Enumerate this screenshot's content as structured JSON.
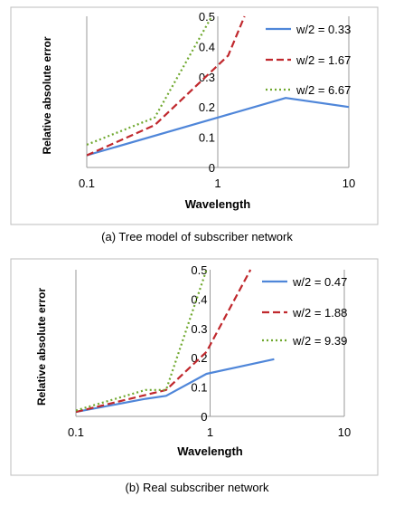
{
  "chart_data": [
    {
      "type": "line",
      "caption": "(a) Tree model of subscriber network",
      "xlabel": "Wavelength",
      "ylabel": "Relative absolute error",
      "xscale": "log",
      "xlim": [
        0.1,
        10
      ],
      "ylim": [
        0,
        0.5
      ],
      "x_ticks": [
        "0.1",
        "1",
        "10"
      ],
      "y_ticks": [
        "0",
        "0.1",
        "0.2",
        "0.3",
        "0.4",
        "0.5"
      ],
      "legend_position": "right",
      "series": [
        {
          "name": "w/2 = 0.33",
          "color": "#4f86d9",
          "dash": "solid",
          "points": [
            [
              0.1,
              0.04
            ],
            [
              3.3,
              0.23
            ],
            [
              10,
              0.2
            ]
          ]
        },
        {
          "name": "w/2 = 1.67",
          "color": "#c0282d",
          "dash": "dashed",
          "points": [
            [
              0.1,
              0.04
            ],
            [
              0.33,
              0.14
            ],
            [
              1.2,
              0.37
            ],
            [
              1.6,
              0.5
            ]
          ]
        },
        {
          "name": "w/2 = 6.67",
          "color": "#6fa82e",
          "dash": "dotted",
          "points": [
            [
              0.1,
              0.075
            ],
            [
              0.33,
              0.165
            ],
            [
              0.9,
              0.5
            ]
          ]
        }
      ]
    },
    {
      "type": "line",
      "caption": "(b) Real subscriber network",
      "xlabel": "Wavelength",
      "ylabel": "Relative absolute error",
      "xscale": "log",
      "xlim": [
        0.1,
        10
      ],
      "ylim": [
        0,
        0.5
      ],
      "x_ticks": [
        "0.1",
        "1",
        "10"
      ],
      "y_ticks": [
        "0",
        "0.1",
        "0.2",
        "0.3",
        "0.4",
        "0.5"
      ],
      "legend_position": "right",
      "series": [
        {
          "name": "w/2 = 0.47",
          "color": "#4f86d9",
          "dash": "solid",
          "points": [
            [
              0.1,
              0.015
            ],
            [
              0.33,
              0.06
            ],
            [
              0.47,
              0.07
            ],
            [
              0.94,
              0.145
            ],
            [
              3.0,
              0.195
            ]
          ]
        },
        {
          "name": "w/2 = 1.88",
          "color": "#c0282d",
          "dash": "dashed",
          "points": [
            [
              0.1,
              0.015
            ],
            [
              0.47,
              0.09
            ],
            [
              0.94,
              0.22
            ],
            [
              2.0,
              0.5
            ]
          ]
        },
        {
          "name": "w/2 = 9.39",
          "color": "#6fa82e",
          "dash": "dotted",
          "points": [
            [
              0.1,
              0.02
            ],
            [
              0.33,
              0.09
            ],
            [
              0.47,
              0.09
            ],
            [
              0.94,
              0.5
            ]
          ]
        }
      ]
    }
  ]
}
